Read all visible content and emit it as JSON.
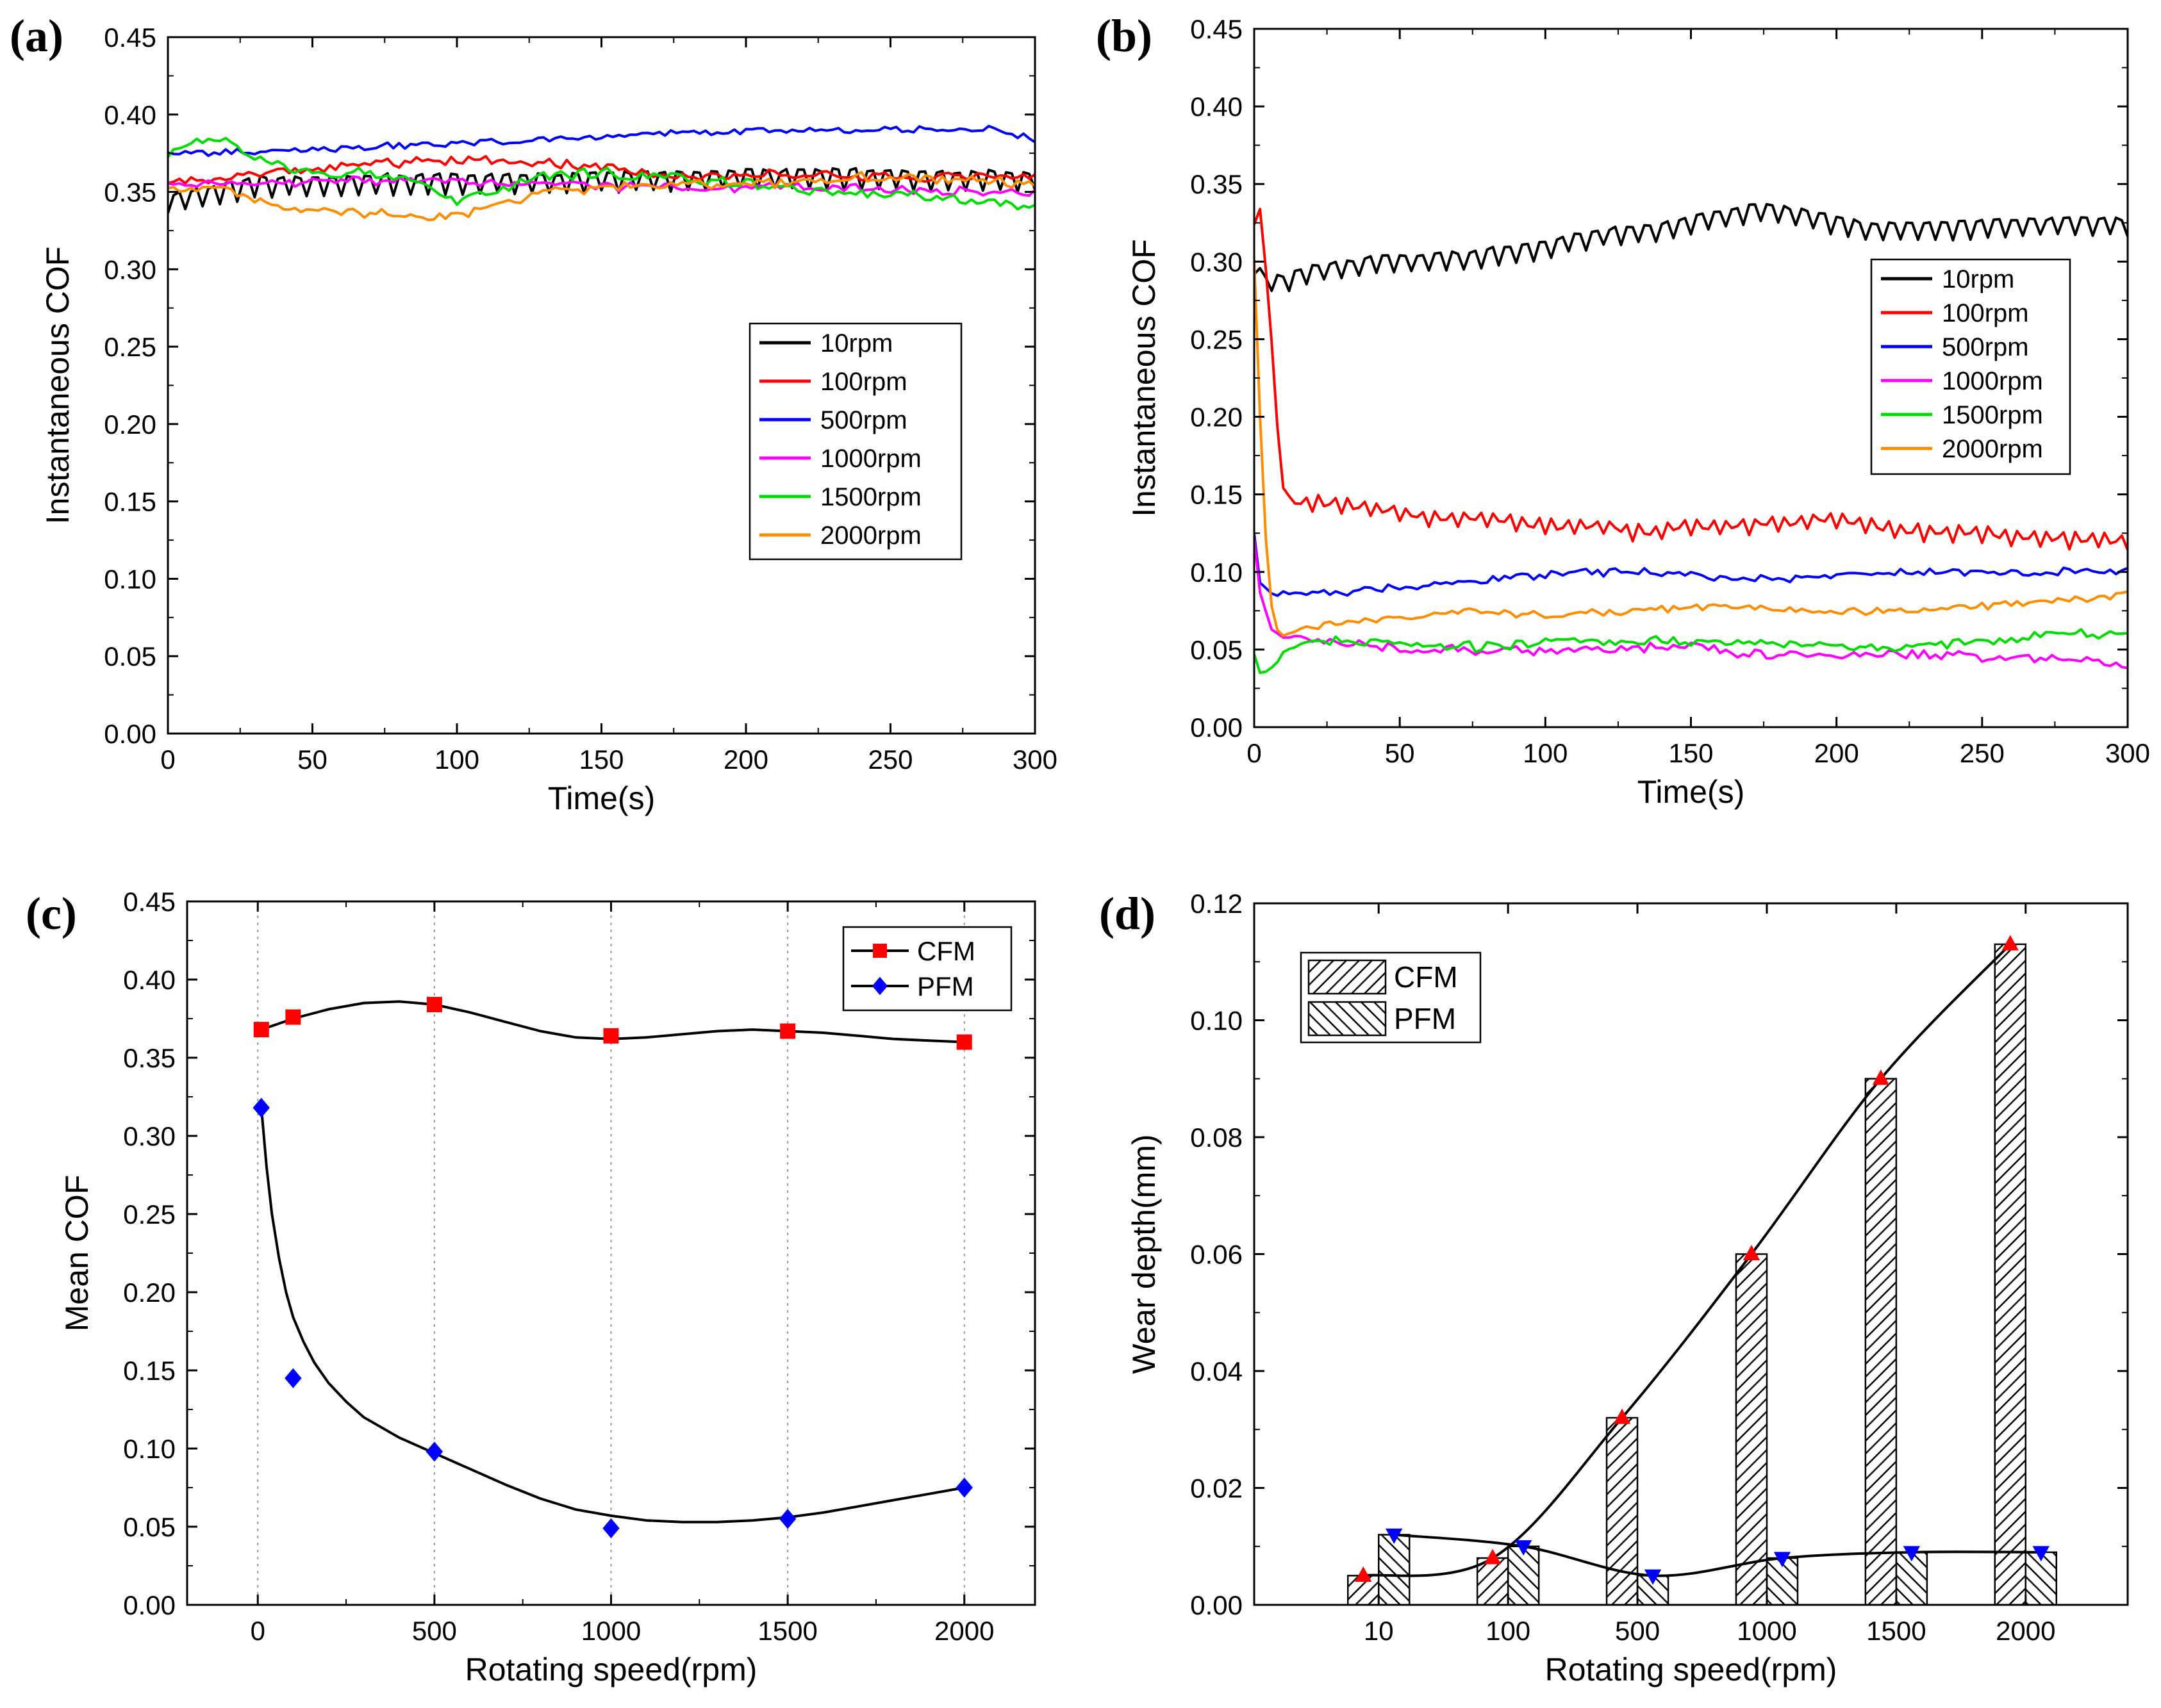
{
  "chart_data": [
    {
      "id": "a",
      "panel_label": "(a)",
      "type": "line",
      "xlabel": "Time(s)",
      "ylabel": "Instantaneous COF",
      "xlim": [
        0,
        300
      ],
      "ylim": [
        0,
        0.45
      ],
      "xticks": [
        "0",
        "50",
        "100",
        "150",
        "200",
        "250",
        "300"
      ],
      "yticks": [
        "0.00",
        "0.05",
        "0.10",
        "0.15",
        "0.20",
        "0.25",
        "0.30",
        "0.35",
        "0.40",
        "0.45"
      ],
      "legend_position": "center-right",
      "noise_step": 2,
      "series": [
        {
          "name": "10rpm",
          "color": "#000000",
          "x": [
            0,
            30,
            60,
            90,
            120,
            150,
            180,
            210,
            240,
            270,
            300
          ],
          "y": [
            0.345,
            0.356,
            0.357,
            0.358,
            0.358,
            0.359,
            0.36,
            0.361,
            0.361,
            0.36,
            0.36
          ],
          "osc_period": 6,
          "osc_amp": 0.009,
          "noise": 0.001
        },
        {
          "name": "100rpm",
          "color": "#ff0000",
          "x": [
            0,
            30,
            60,
            90,
            120,
            150,
            180,
            210,
            240,
            270,
            300
          ],
          "y": [
            0.355,
            0.362,
            0.366,
            0.37,
            0.37,
            0.366,
            0.36,
            0.362,
            0.36,
            0.36,
            0.36
          ],
          "osc_period": 0,
          "osc_amp": 0,
          "noise": 0.0025
        },
        {
          "name": "500rpm",
          "color": "#0000ff",
          "x": [
            0,
            30,
            60,
            90,
            120,
            150,
            180,
            210,
            240,
            270,
            285,
            300
          ],
          "y": [
            0.375,
            0.376,
            0.378,
            0.381,
            0.383,
            0.386,
            0.388,
            0.389,
            0.39,
            0.39,
            0.391,
            0.383
          ],
          "osc_period": 0,
          "osc_amp": 0,
          "noise": 0.0018
        },
        {
          "name": "1000rpm",
          "color": "#ff00ff",
          "x": [
            0,
            30,
            60,
            90,
            120,
            150,
            180,
            210,
            240,
            270,
            300
          ],
          "y": [
            0.355,
            0.356,
            0.357,
            0.357,
            0.356,
            0.354,
            0.352,
            0.354,
            0.353,
            0.35,
            0.35
          ],
          "osc_period": 0,
          "osc_amp": 0,
          "noise": 0.0025
        },
        {
          "name": "1500rpm",
          "color": "#00dd00",
          "x": [
            0,
            10,
            20,
            30,
            50,
            80,
            100,
            130,
            150,
            170,
            200,
            230,
            260,
            300
          ],
          "y": [
            0.372,
            0.382,
            0.383,
            0.372,
            0.363,
            0.36,
            0.345,
            0.36,
            0.362,
            0.36,
            0.355,
            0.35,
            0.348,
            0.34
          ],
          "osc_period": 0,
          "osc_amp": 0,
          "noise": 0.003
        },
        {
          "name": "2000rpm",
          "color": "#ff8c00",
          "x": [
            0,
            20,
            40,
            60,
            90,
            110,
            130,
            150,
            180,
            210,
            240,
            270,
            300
          ],
          "y": [
            0.352,
            0.352,
            0.34,
            0.338,
            0.333,
            0.338,
            0.35,
            0.352,
            0.355,
            0.355,
            0.36,
            0.358,
            0.355
          ],
          "osc_period": 0,
          "osc_amp": 0,
          "noise": 0.0025
        }
      ]
    },
    {
      "id": "b",
      "panel_label": "(b)",
      "type": "line",
      "xlabel": "Time(s)",
      "ylabel": "Instantaneous COF",
      "xlim": [
        0,
        300
      ],
      "ylim": [
        0,
        0.45
      ],
      "xticks": [
        "0",
        "50",
        "100",
        "150",
        "200",
        "250",
        "300"
      ],
      "yticks": [
        "0.00",
        "0.05",
        "0.10",
        "0.15",
        "0.20",
        "0.25",
        "0.30",
        "0.35",
        "0.40",
        "0.45"
      ],
      "legend_position": "top-right",
      "noise_step": 2,
      "series": [
        {
          "name": "10rpm",
          "color": "#000000",
          "x": [
            0,
            3,
            10,
            20,
            40,
            60,
            80,
            100,
            120,
            140,
            160,
            175,
            190,
            210,
            240,
            270,
            300
          ],
          "y": [
            0.3,
            0.288,
            0.288,
            0.295,
            0.3,
            0.302,
            0.305,
            0.31,
            0.318,
            0.322,
            0.33,
            0.335,
            0.33,
            0.322,
            0.322,
            0.325,
            0.325
          ],
          "osc_period": 6,
          "osc_amp": 0.008,
          "noise": 0.001
        },
        {
          "name": "100rpm",
          "color": "#ff0000",
          "x": [
            0,
            2,
            5,
            8,
            10,
            12,
            20,
            40,
            60,
            80,
            100,
            120,
            135,
            150,
            170,
            200,
            220,
            250,
            270,
            300
          ],
          "y": [
            0.33,
            0.33,
            0.28,
            0.19,
            0.16,
            0.145,
            0.145,
            0.142,
            0.135,
            0.135,
            0.13,
            0.13,
            0.125,
            0.13,
            0.13,
            0.135,
            0.127,
            0.125,
            0.122,
            0.12
          ],
          "osc_period": 5,
          "osc_amp": 0.006,
          "noise": 0.001
        },
        {
          "name": "500rpm",
          "color": "#0000ff",
          "x": [
            0,
            1,
            3,
            6,
            20,
            50,
            80,
            110,
            140,
            170,
            200,
            230,
            260,
            290,
            300
          ],
          "y": [
            0.125,
            0.1,
            0.088,
            0.086,
            0.086,
            0.09,
            0.095,
            0.1,
            0.1,
            0.095,
            0.098,
            0.1,
            0.1,
            0.1,
            0.1
          ],
          "osc_period": 0,
          "osc_amp": 0,
          "noise": 0.002
        },
        {
          "name": "1000rpm",
          "color": "#ff00ff",
          "x": [
            0,
            2,
            5,
            8,
            15,
            25,
            50,
            80,
            110,
            150,
            180,
            210,
            250,
            280,
            300
          ],
          "y": [
            0.12,
            0.09,
            0.068,
            0.06,
            0.058,
            0.055,
            0.05,
            0.05,
            0.05,
            0.052,
            0.045,
            0.048,
            0.045,
            0.045,
            0.04
          ],
          "osc_period": 0,
          "osc_amp": 0,
          "noise": 0.0025
        },
        {
          "name": "1500rpm",
          "color": "#00dd00",
          "x": [
            0,
            2,
            4,
            8,
            12,
            20,
            40,
            60,
            80,
            100,
            130,
            160,
            190,
            220,
            250,
            275,
            300
          ],
          "y": [
            0.045,
            0.035,
            0.035,
            0.042,
            0.05,
            0.055,
            0.055,
            0.052,
            0.052,
            0.055,
            0.055,
            0.055,
            0.052,
            0.052,
            0.055,
            0.06,
            0.06
          ],
          "osc_period": 0,
          "osc_amp": 0,
          "noise": 0.0025
        },
        {
          "name": "2000rpm",
          "color": "#ff8c00",
          "x": [
            0,
            1,
            2,
            4,
            6,
            8,
            10,
            15,
            30,
            50,
            70,
            100,
            130,
            160,
            190,
            220,
            250,
            280,
            300
          ],
          "y": [
            0.3,
            0.3,
            0.2,
            0.12,
            0.08,
            0.065,
            0.06,
            0.062,
            0.068,
            0.07,
            0.075,
            0.072,
            0.075,
            0.078,
            0.075,
            0.075,
            0.078,
            0.082,
            0.085
          ],
          "osc_period": 0,
          "osc_amp": 0,
          "noise": 0.002
        }
      ]
    },
    {
      "id": "c",
      "panel_label": "(c)",
      "type": "scatter",
      "xlabel": "Rotating speed(rpm)",
      "ylabel": "Mean COF",
      "xlim": [
        -200,
        2200
      ],
      "ylim": [
        0,
        0.45
      ],
      "xtick_values": [
        0,
        500,
        1000,
        1500,
        2000
      ],
      "xticks": [
        "0",
        "500",
        "1000",
        "1500",
        "2000"
      ],
      "yticks": [
        "0.00",
        "0.05",
        "0.10",
        "0.15",
        "0.20",
        "0.25",
        "0.30",
        "0.35",
        "0.40",
        "0.45"
      ],
      "vertical_gridlines": true,
      "legend_position": "top-right",
      "series": [
        {
          "name": "CFM",
          "color": "#ff0000",
          "marker": "square",
          "x": [
            10,
            100,
            500,
            1000,
            1500,
            2000
          ],
          "y": [
            0.368,
            0.376,
            0.384,
            0.364,
            0.367,
            0.36
          ],
          "fit_x": [
            10,
            100,
            200,
            300,
            400,
            500,
            600,
            700,
            800,
            900,
            1000,
            1100,
            1200,
            1300,
            1400,
            1500,
            1600,
            1700,
            1800,
            1900,
            2000
          ],
          "fit_y": [
            0.368,
            0.375,
            0.381,
            0.385,
            0.386,
            0.384,
            0.379,
            0.373,
            0.367,
            0.363,
            0.362,
            0.363,
            0.365,
            0.367,
            0.368,
            0.367,
            0.366,
            0.364,
            0.362,
            0.361,
            0.36
          ]
        },
        {
          "name": "PFM",
          "color": "#0000ff",
          "marker": "diamond",
          "x": [
            10,
            100,
            500,
            1000,
            1500,
            2000
          ],
          "y": [
            0.318,
            0.145,
            0.098,
            0.049,
            0.055,
            0.075
          ],
          "fit_x": [
            10,
            25,
            40,
            60,
            80,
            100,
            130,
            160,
            200,
            250,
            300,
            400,
            500,
            600,
            700,
            800,
            900,
            1000,
            1100,
            1200,
            1300,
            1400,
            1500,
            1600,
            1700,
            1800,
            1900,
            2000
          ],
          "fit_y": [
            0.318,
            0.28,
            0.25,
            0.222,
            0.2,
            0.184,
            0.168,
            0.155,
            0.142,
            0.13,
            0.12,
            0.107,
            0.097,
            0.087,
            0.077,
            0.068,
            0.061,
            0.057,
            0.054,
            0.053,
            0.053,
            0.054,
            0.056,
            0.059,
            0.063,
            0.067,
            0.071,
            0.075
          ]
        }
      ]
    },
    {
      "id": "d",
      "panel_label": "(d)",
      "type": "bar",
      "xlabel": "Rotating speed(rpm)",
      "ylabel": "Wear depth(mm)",
      "ylim": [
        0,
        0.12
      ],
      "categories": [
        "10",
        "100",
        "500",
        "1000",
        "1500",
        "2000"
      ],
      "yticks": [
        "0.00",
        "0.02",
        "0.04",
        "0.06",
        "0.08",
        "0.10",
        "0.12"
      ],
      "legend_position": "top-left",
      "series": [
        {
          "name": "CFM",
          "values": [
            0.005,
            0.008,
            0.032,
            0.06,
            0.09,
            0.113
          ],
          "hatch": "forward",
          "marker": "triangle-up",
          "marker_color": "#ff0000"
        },
        {
          "name": "PFM",
          "values": [
            0.012,
            0.01,
            0.005,
            0.008,
            0.009,
            0.009
          ],
          "hatch": "backward",
          "marker": "triangle-down",
          "marker_color": "#0000ff"
        }
      ]
    }
  ]
}
